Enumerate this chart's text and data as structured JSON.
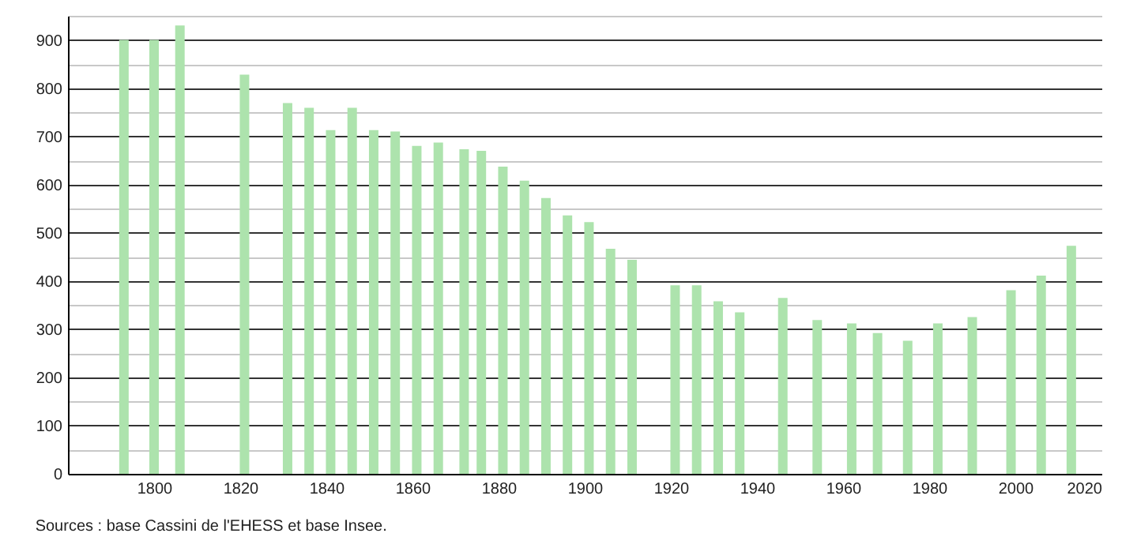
{
  "chart_data": {
    "type": "bar",
    "x": [
      1793,
      1800,
      1806,
      1821,
      1831,
      1836,
      1841,
      1846,
      1851,
      1856,
      1861,
      1866,
      1872,
      1876,
      1881,
      1886,
      1891,
      1896,
      1901,
      1906,
      1911,
      1921,
      1926,
      1931,
      1936,
      1946,
      1954,
      1962,
      1968,
      1975,
      1982,
      1990,
      1999,
      2006,
      2013
    ],
    "values": [
      900,
      900,
      930,
      828,
      769,
      759,
      713,
      759,
      713,
      710,
      680,
      687,
      673,
      670,
      637,
      608,
      572,
      536,
      522,
      467,
      444,
      391,
      391,
      358,
      335,
      365,
      319,
      312,
      292,
      276,
      312,
      325,
      381,
      411,
      473
    ],
    "color": "#ade3ad",
    "xlim": [
      1780,
      2020
    ],
    "xticks": [
      1800,
      1820,
      1840,
      1860,
      1880,
      1900,
      1920,
      1940,
      1960,
      1980,
      2000,
      2020
    ],
    "ylim": [
      0,
      950
    ],
    "yticks": [
      0,
      {
        "value": 50,
        "label": null
      },
      100,
      {
        "value": 150,
        "label": null
      },
      200,
      {
        "value": 250,
        "label": null
      },
      300,
      {
        "value": 350,
        "label": null
      },
      400,
      {
        "value": 450,
        "label": null
      },
      500,
      {
        "value": 550,
        "label": null
      },
      600,
      {
        "value": 650,
        "label": null
      },
      700,
      {
        "value": 750,
        "label": null
      },
      800,
      {
        "value": 850,
        "label": null
      },
      900,
      {
        "value": 950,
        "label": null
      }
    ],
    "grid": "y",
    "annotations": [
      "Sources : base Cassini de l'EHESS et base Insee."
    ]
  }
}
